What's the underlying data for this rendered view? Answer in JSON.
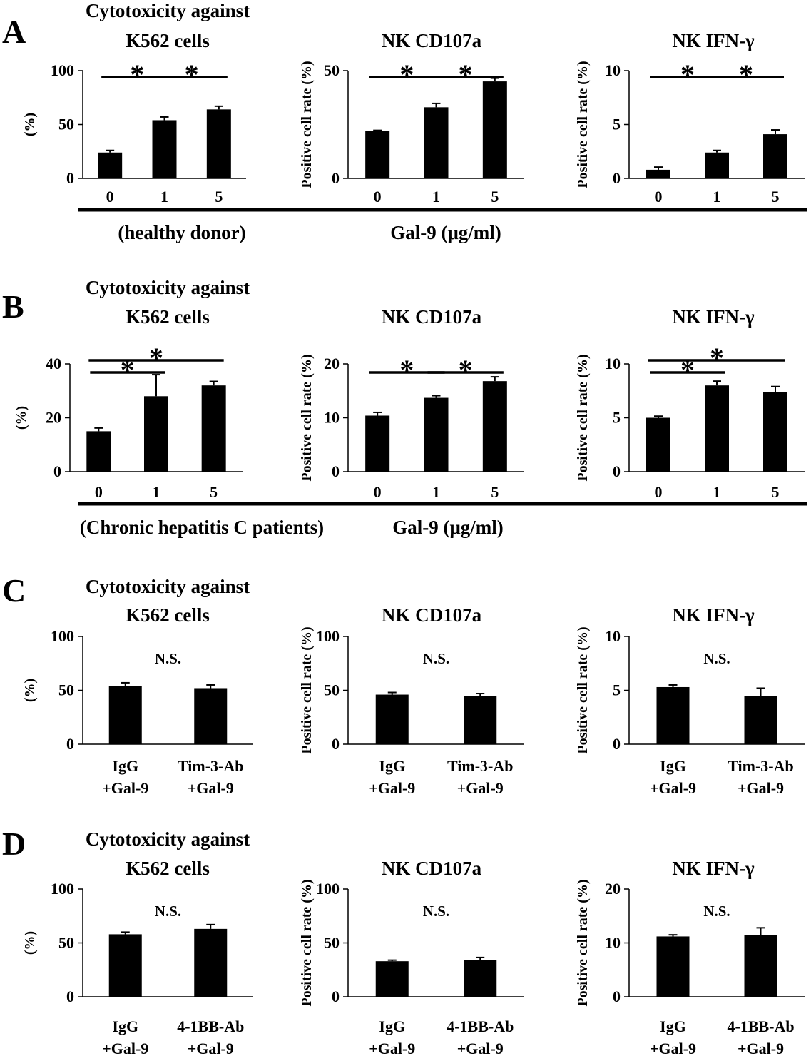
{
  "chart_data": [
    {
      "panel": "A",
      "type": "bar",
      "title": [
        "Cytotoxicity against",
        "K562 cells"
      ],
      "ylabel": "(%)",
      "ylim": [
        0,
        100
      ],
      "yticks": [
        0,
        50,
        100
      ],
      "categories": [
        "0",
        "1",
        "5"
      ],
      "values": [
        24,
        54,
        64
      ],
      "errors": [
        2,
        3,
        3
      ],
      "annotations": [
        {
          "from": 0,
          "to": 1,
          "level": 0,
          "label": "*"
        },
        {
          "from": 1,
          "to": 2,
          "level": 0,
          "label": "*"
        }
      ]
    },
    {
      "panel": "A",
      "type": "bar",
      "title": [
        "NK CD107a"
      ],
      "ylabel": "Positive cell rate (%)",
      "ylim": [
        0,
        50
      ],
      "yticks": [
        0,
        50
      ],
      "categories": [
        "0",
        "1",
        "5"
      ],
      "values": [
        22,
        33,
        45
      ],
      "errors": [
        0.3,
        1.8,
        1.5
      ],
      "annotations": [
        {
          "from": 0,
          "to": 1,
          "level": 0,
          "label": "*"
        },
        {
          "from": 1,
          "to": 2,
          "level": 0,
          "label": "*"
        }
      ]
    },
    {
      "panel": "A",
      "type": "bar",
      "title": [
        "NK IFN-γ"
      ],
      "ylabel": "Positive cell rate (%)",
      "ylim": [
        0,
        10
      ],
      "yticks": [
        0,
        5,
        10
      ],
      "categories": [
        "0",
        "1",
        "5"
      ],
      "values": [
        0.8,
        2.4,
        4.1
      ],
      "errors": [
        0.25,
        0.2,
        0.4
      ],
      "annotations": [
        {
          "from": 0,
          "to": 1,
          "level": 0,
          "label": "*"
        },
        {
          "from": 1,
          "to": 2,
          "level": 0,
          "label": "*"
        }
      ]
    },
    {
      "panel": "B",
      "type": "bar",
      "title": [
        "Cytotoxicity against",
        "K562 cells"
      ],
      "ylabel": "(%)",
      "ylim": [
        0,
        40
      ],
      "yticks": [
        0,
        20,
        40
      ],
      "categories": [
        "0",
        "1",
        "5"
      ],
      "values": [
        15,
        28,
        32
      ],
      "errors": [
        1.2,
        8,
        1.5
      ],
      "annotations": [
        {
          "from": 0,
          "to": 1,
          "level": 0,
          "label": "*"
        },
        {
          "from": 0,
          "to": 2,
          "level": 1,
          "label": "*"
        }
      ]
    },
    {
      "panel": "B",
      "type": "bar",
      "title": [
        "NK CD107a"
      ],
      "ylabel": "Positive cell rate (%)",
      "ylim": [
        0,
        20
      ],
      "yticks": [
        0,
        10,
        20
      ],
      "categories": [
        "0",
        "1",
        "5"
      ],
      "values": [
        10.4,
        13.7,
        16.8
      ],
      "errors": [
        0.6,
        0.4,
        0.8
      ],
      "annotations": [
        {
          "from": 0,
          "to": 1,
          "level": 0,
          "label": "*"
        },
        {
          "from": 1,
          "to": 2,
          "level": 0,
          "label": "*"
        }
      ]
    },
    {
      "panel": "B",
      "type": "bar",
      "title": [
        "NK IFN-γ"
      ],
      "ylabel": "Positive cell rate (%)",
      "ylim": [
        0,
        10
      ],
      "yticks": [
        0,
        5,
        10
      ],
      "categories": [
        "0",
        "1",
        "5"
      ],
      "values": [
        5.0,
        8.0,
        7.4
      ],
      "errors": [
        0.15,
        0.4,
        0.5
      ],
      "annotations": [
        {
          "from": 0,
          "to": 1,
          "level": 0,
          "label": "*"
        },
        {
          "from": 0,
          "to": 2,
          "level": 1,
          "label": "*"
        }
      ]
    },
    {
      "panel": "C",
      "type": "bar",
      "title": [
        "Cytotoxicity against",
        "K562 cells"
      ],
      "ylabel": "(%)",
      "ylim": [
        0,
        100
      ],
      "yticks": [
        0,
        50,
        100
      ],
      "categories": [
        [
          "IgG",
          "+Gal-9"
        ],
        [
          "Tim-3-Ab",
          "+Gal-9"
        ]
      ],
      "values": [
        54,
        52
      ],
      "errors": [
        3,
        3
      ],
      "ns": "N.S."
    },
    {
      "panel": "C",
      "type": "bar",
      "title": [
        "NK CD107a"
      ],
      "ylabel": "Positive cell rate (%)",
      "ylim": [
        0,
        100
      ],
      "yticks": [
        0,
        50,
        100
      ],
      "categories": [
        [
          "IgG",
          "+Gal-9"
        ],
        [
          "Tim-3-Ab",
          "+Gal-9"
        ]
      ],
      "values": [
        46,
        45
      ],
      "errors": [
        2,
        2
      ],
      "ns": "N.S."
    },
    {
      "panel": "C",
      "type": "bar",
      "title": [
        "NK IFN-γ"
      ],
      "ylabel": "Positive cell rate (%)",
      "ylim": [
        0,
        10
      ],
      "yticks": [
        0,
        5,
        10
      ],
      "categories": [
        [
          "IgG",
          "+Gal-9"
        ],
        [
          "Tim-3-Ab",
          "+Gal-9"
        ]
      ],
      "values": [
        5.3,
        4.5
      ],
      "errors": [
        0.2,
        0.7
      ],
      "ns": "N.S."
    },
    {
      "panel": "D",
      "type": "bar",
      "title": [
        "Cytotoxicity against",
        "K562 cells"
      ],
      "ylabel": "(%)",
      "ylim": [
        0,
        100
      ],
      "yticks": [
        0,
        50,
        100
      ],
      "categories": [
        [
          "IgG",
          "+Gal-9"
        ],
        [
          "4-1BB-Ab",
          "+Gal-9"
        ]
      ],
      "values": [
        58,
        63
      ],
      "errors": [
        2,
        4
      ],
      "ns": "N.S."
    },
    {
      "panel": "D",
      "type": "bar",
      "title": [
        "NK CD107a"
      ],
      "ylabel": "Positive cell rate (%)",
      "ylim": [
        0,
        100
      ],
      "yticks": [
        0,
        50,
        100
      ],
      "categories": [
        [
          "IgG",
          "+Gal-9"
        ],
        [
          "4-1BB-Ab",
          "+Gal-9"
        ]
      ],
      "values": [
        33,
        34
      ],
      "errors": [
        1,
        2.5
      ],
      "ns": "N.S."
    },
    {
      "panel": "D",
      "type": "bar",
      "title": [
        "NK IFN-γ"
      ],
      "ylabel": "Positive cell rate (%)",
      "ylim": [
        0,
        20
      ],
      "yticks": [
        0,
        10,
        20
      ],
      "categories": [
        [
          "IgG",
          "+Gal-9"
        ],
        [
          "4-1BB-Ab",
          "+Gal-9"
        ]
      ],
      "values": [
        11.2,
        11.5
      ],
      "errors": [
        0.3,
        1.3
      ],
      "ns": "N.S."
    }
  ],
  "panel_labels": [
    "A",
    "B",
    "C",
    "D"
  ],
  "footers": [
    {
      "panel": "A",
      "group": "(healthy donor)",
      "unit": "Gal-9 (μg/ml)"
    },
    {
      "panel": "B",
      "group": "(Chronic hepatitis C patients)",
      "unit": "Gal-9 (μg/ml)"
    }
  ]
}
